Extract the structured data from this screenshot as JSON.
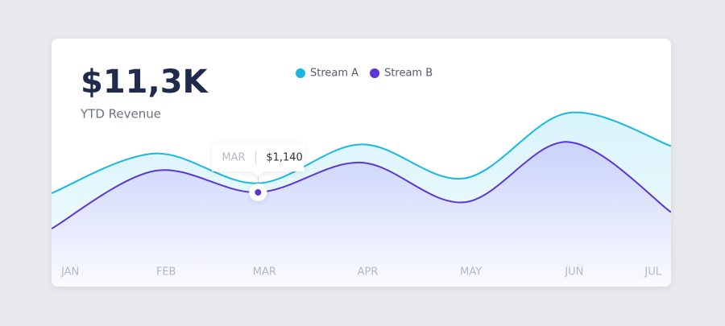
{
  "chart_data": {
    "type": "area",
    "title": "$11,3K",
    "subtitle": "YTD Revenue",
    "categories": [
      "JAN",
      "FEB",
      "MAR",
      "APR",
      "MAY",
      "JUN",
      "JUL"
    ],
    "series": [
      {
        "name": "Stream A",
        "color": "#1ab8e0",
        "values": [
          1130,
          1610,
          1250,
          1720,
          1310,
          2100,
          1700
        ]
      },
      {
        "name": "Stream B",
        "color": "#5b35d5",
        "values": [
          700,
          1400,
          1140,
          1500,
          1020,
          1750,
          900
        ],
        "value_labels": [
          null,
          null,
          "$1,140",
          null,
          null,
          null,
          null
        ]
      }
    ],
    "ylim": [
      0,
      3000
    ],
    "legend": "top"
  }
}
